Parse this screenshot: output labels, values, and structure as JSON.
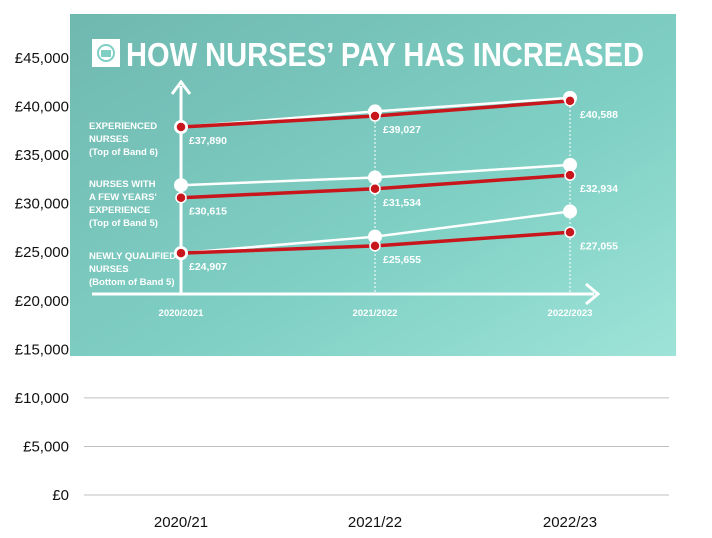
{
  "chart_data": {
    "type": "line",
    "title": "HOW NURSES’ PAY HAS INCREASED",
    "categories": [
      "2020/21",
      "2021/22",
      "2022/23"
    ],
    "inner_categories": [
      "2020/2021",
      "2021/2022",
      "2022/2023"
    ],
    "y_ticks": [
      "£0",
      "£5,000",
      "£10,000",
      "£15,000",
      "£20,000",
      "£25,000",
      "£30,000",
      "£35,000",
      "£40,000",
      "£45,000"
    ],
    "ylim": [
      0,
      45000
    ],
    "grid": true,
    "colors": {
      "background": "#7fcfc4",
      "red": "#c8161d",
      "white": "#ffffff",
      "grid": "#bfbfbf"
    },
    "series_labels": [
      {
        "lines": [
          "EXPERIENCED",
          "NURSES",
          "(Top of Band 6)"
        ]
      },
      {
        "lines": [
          "NURSES WITH",
          "A FEW YEARS'",
          "EXPERIENCE",
          "(Top of Band 5)"
        ]
      },
      {
        "lines": [
          "NEWLY QUALIFIED",
          "NURSES",
          "(Bottom of Band 5)"
        ]
      }
    ],
    "series": [
      {
        "group": "experienced",
        "kind": "red",
        "values": [
          37890,
          39027,
          40588
        ]
      },
      {
        "group": "experienced",
        "kind": "white",
        "values": [
          37890,
          39500,
          40900
        ]
      },
      {
        "group": "few-years",
        "kind": "red",
        "values": [
          30615,
          31534,
          32934
        ]
      },
      {
        "group": "few-years",
        "kind": "white",
        "values": [
          31900,
          32700,
          34000
        ]
      },
      {
        "group": "newly-qualified",
        "kind": "red",
        "values": [
          24907,
          25655,
          27055
        ]
      },
      {
        "group": "newly-qualified",
        "kind": "white",
        "values": [
          24907,
          26600,
          29200
        ]
      }
    ],
    "data_labels": [
      {
        "text": "£37,890",
        "series": 0,
        "point": 0
      },
      {
        "text": "£39,027",
        "series": 0,
        "point": 1
      },
      {
        "text": "£40,588",
        "series": 0,
        "point": 2
      },
      {
        "text": "£30,615",
        "series": 2,
        "point": 0
      },
      {
        "text": "£31,534",
        "series": 2,
        "point": 1
      },
      {
        "text": "£32,934",
        "series": 2,
        "point": 2
      },
      {
        "text": "£24,907",
        "series": 4,
        "point": 0
      },
      {
        "text": "£25,655",
        "series": 4,
        "point": 1
      },
      {
        "text": "£27,055",
        "series": 4,
        "point": 2
      }
    ]
  }
}
